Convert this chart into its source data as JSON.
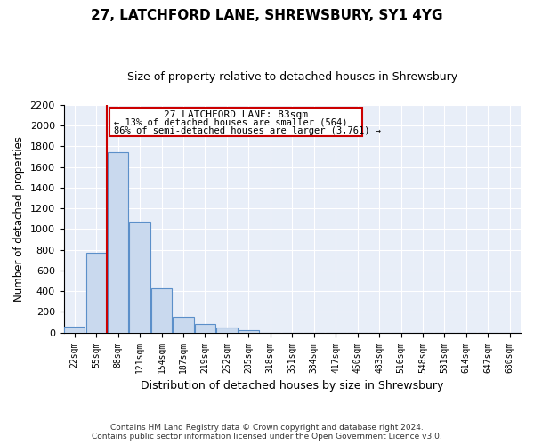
{
  "title": "27, LATCHFORD LANE, SHREWSBURY, SY1 4YG",
  "subtitle": "Size of property relative to detached houses in Shrewsbury",
  "xlabel": "Distribution of detached houses by size in Shrewsbury",
  "ylabel": "Number of detached properties",
  "bar_labels": [
    "22sqm",
    "55sqm",
    "88sqm",
    "121sqm",
    "154sqm",
    "187sqm",
    "219sqm",
    "252sqm",
    "285sqm",
    "318sqm",
    "351sqm",
    "384sqm",
    "417sqm",
    "450sqm",
    "483sqm",
    "516sqm",
    "548sqm",
    "581sqm",
    "614sqm",
    "647sqm",
    "680sqm"
  ],
  "bar_values": [
    55,
    770,
    1740,
    1075,
    430,
    155,
    85,
    45,
    25,
    0,
    0,
    0,
    0,
    0,
    0,
    0,
    0,
    0,
    0,
    0,
    0
  ],
  "bar_fill_color": "#c9d9ee",
  "bar_edge_color": "#5b8fc9",
  "vline_x": 1.5,
  "vline_color": "#cc0000",
  "ylim": [
    0,
    2200
  ],
  "yticks": [
    0,
    200,
    400,
    600,
    800,
    1000,
    1200,
    1400,
    1600,
    1800,
    2000,
    2200
  ],
  "annotation_title": "27 LATCHFORD LANE: 83sqm",
  "annotation_line1": "← 13% of detached houses are smaller (564)",
  "annotation_line2": "86% of semi-detached houses are larger (3,761) →",
  "annotation_box_color": "#cc0000",
  "footer_line1": "Contains HM Land Registry data © Crown copyright and database right 2024.",
  "footer_line2": "Contains public sector information licensed under the Open Government Licence v3.0.",
  "bg_color": "#ffffff",
  "plot_bg_color": "#e8eef8",
  "grid_color": "#ffffff",
  "title_fontsize": 11,
  "subtitle_fontsize": 9
}
